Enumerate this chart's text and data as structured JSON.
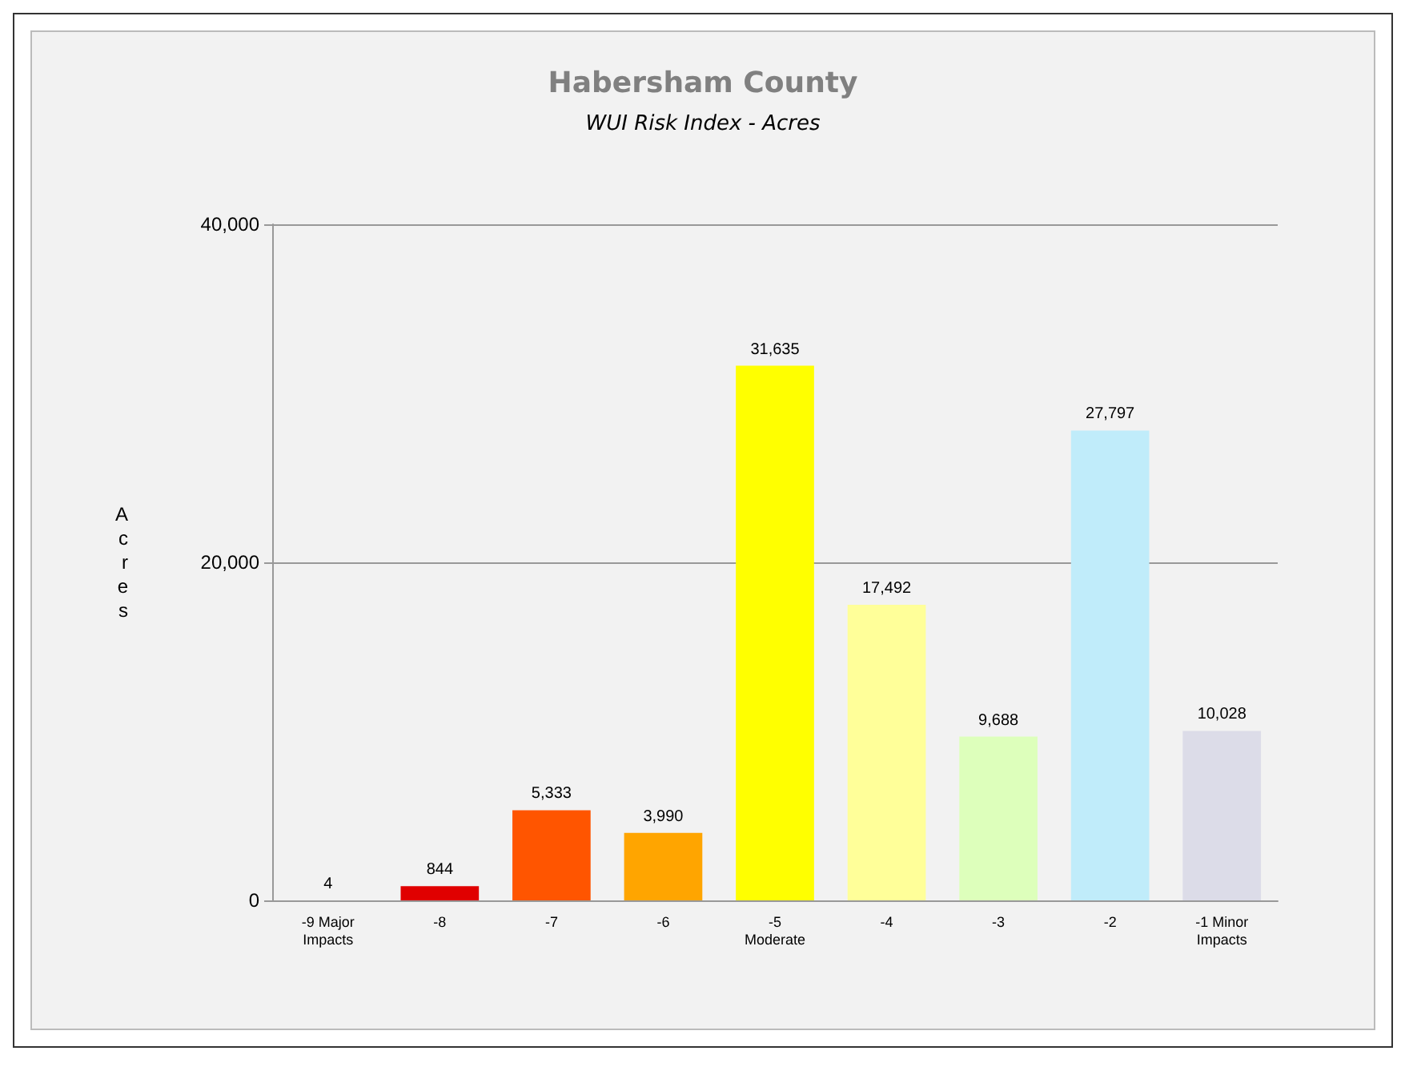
{
  "chart_data": {
    "type": "bar",
    "title": "Habersham County",
    "subtitle": "WUI Risk Index - Acres",
    "ylabel": "Acres",
    "categories": [
      "-9 Major\nImpacts",
      "-8",
      "-7",
      "-6",
      "-5\nModerate",
      "-4",
      "-3",
      "-2",
      "-1 Minor\nImpacts"
    ],
    "values": [
      4,
      844,
      5333,
      3990,
      31635,
      17492,
      9688,
      27797,
      10028
    ],
    "value_labels": [
      "4",
      "844",
      "5,333",
      "3,990",
      "31,635",
      "17,492",
      "9,688",
      "27,797",
      "10,028"
    ],
    "colors": [
      "#6b1414",
      "#e00000",
      "#ff5500",
      "#ffa500",
      "#ffff00",
      "#ffff99",
      "#ddffbb",
      "#c0ecfa",
      "#dcdce8"
    ],
    "ylim": [
      0,
      40000
    ],
    "yticks": [
      {
        "value": 0,
        "label": "0"
      },
      {
        "value": 20000,
        "label": "20,000"
      },
      {
        "value": 40000,
        "label": "40,000"
      }
    ],
    "grid": "y"
  }
}
